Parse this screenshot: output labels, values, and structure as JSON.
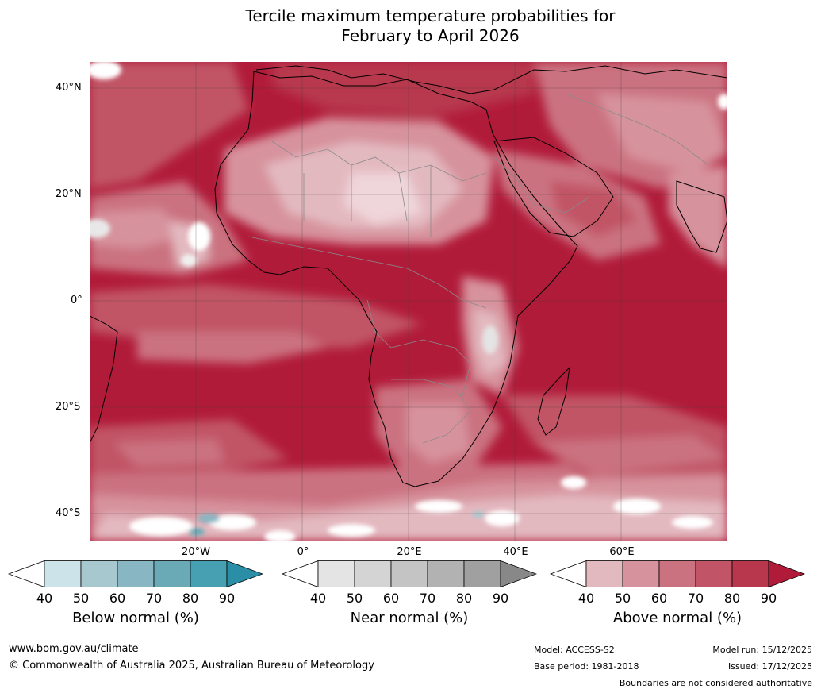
{
  "title": {
    "line1": "Tercile maximum temperature probabilities for",
    "line2": "February to April 2026"
  },
  "colors": {
    "ocean_dominant": "#b11b3a",
    "land_border": "#8a8a8a",
    "coast": "#000000",
    "grid": "#555555"
  },
  "axes": {
    "lat_labels": [
      "40°N",
      "20°N",
      "0°",
      "20°S",
      "40°S"
    ],
    "lon_labels": [
      "20°W",
      "0°",
      "20°E",
      "40°E",
      "60°E"
    ]
  },
  "legends": [
    {
      "title": "Below normal (%)",
      "ticks": [
        "40",
        "50",
        "60",
        "70",
        "80",
        "90"
      ],
      "colors": [
        "#ffffff",
        "#cde3ea",
        "#a8c8cf",
        "#88b6c2",
        "#6aaab6",
        "#46a0b2",
        "#2a8fa6"
      ]
    },
    {
      "title": "Near normal (%)",
      "ticks": [
        "40",
        "50",
        "60",
        "70",
        "80",
        "90"
      ],
      "colors": [
        "#ffffff",
        "#e4e4e4",
        "#d4d4d4",
        "#c4c4c4",
        "#b2b2b2",
        "#a0a0a0",
        "#888888"
      ]
    },
    {
      "title": "Above normal (%)",
      "ticks": [
        "40",
        "50",
        "60",
        "70",
        "80",
        "90"
      ],
      "colors": [
        "#ffffff",
        "#e3b9c0",
        "#d7939d",
        "#cb7280",
        "#c15466",
        "#b8374d",
        "#b11b3a"
      ]
    }
  ],
  "footer": {
    "website": "www.bom.gov.au/climate",
    "copyright": "© Commonwealth of Australia 2025, Australian Bureau of Meteorology",
    "model": "Model: ACCESS-S2",
    "base_period": "Base period: 1981-2018",
    "model_run": "Model run: 15/12/2025",
    "issued": "Issued: 17/12/2025",
    "disclaimer": "Boundaries are not considered authoritative"
  }
}
